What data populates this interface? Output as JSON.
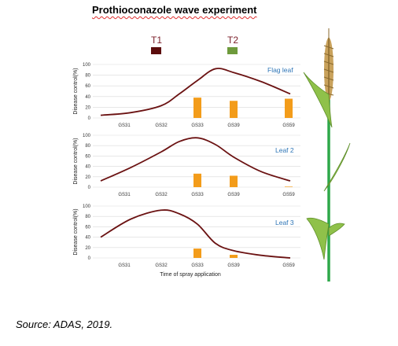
{
  "title": "Prothioconazole wave experiment",
  "source": "Source: ADAS, 2019.",
  "colors": {
    "curve": "#6b1212",
    "bars": "#f39c1a",
    "t1_swatch": "#5c0d0d",
    "t2_swatch": "#6e9a3c",
    "panel_label": "#2e75b6",
    "gridline": "#d9d9d9",
    "stem": "#2ea84a",
    "leaf": "#8fc14a",
    "ear": "#b98a3a"
  },
  "plant_icon": "wheat-plant-illustration",
  "chart_data": [
    {
      "type": "line+bar",
      "title": "Flag leaf",
      "ylabel": "Disease control(%)",
      "xlabel": "",
      "ylim": [
        0,
        100
      ],
      "yticks": [
        0,
        20,
        40,
        60,
        80,
        100
      ],
      "grid": true,
      "categories": [
        "GS31",
        "GS32",
        "GS33",
        "GS39",
        "GS59"
      ],
      "curve": {
        "x": [
          0,
          0.5,
          1,
          1.5,
          2,
          2.5,
          3,
          3.5,
          4
        ],
        "y": [
          5,
          10,
          23,
          45,
          70,
          92,
          85,
          68,
          45
        ]
      },
      "bars": [
        0,
        0,
        38,
        32,
        36
      ]
    },
    {
      "type": "line+bar",
      "title": "Leaf 2",
      "ylabel": "Disease control(%)",
      "xlabel": "",
      "ylim": [
        0,
        100
      ],
      "yticks": [
        0,
        20,
        40,
        60,
        80,
        100
      ],
      "grid": true,
      "categories": [
        "GS31",
        "GS32",
        "GS33",
        "GS39",
        "GS59"
      ],
      "curve": {
        "x": [
          0,
          0.5,
          1,
          1.5,
          2,
          2.5,
          3,
          3.5,
          4
        ],
        "y": [
          12,
          38,
          68,
          88,
          95,
          82,
          58,
          30,
          12
        ]
      },
      "bars": [
        0,
        0,
        26,
        22,
        1
      ]
    },
    {
      "type": "line+bar",
      "title": "Leaf 3",
      "ylabel": "Disease control(%)",
      "xlabel": "Time of spray application",
      "ylim": [
        0,
        100
      ],
      "yticks": [
        0,
        20,
        40,
        60,
        80,
        100
      ],
      "grid": true,
      "categories": [
        "GS31",
        "GS32",
        "GS33",
        "GS39",
        "GS59"
      ],
      "curve": {
        "x": [
          0,
          0.5,
          1,
          1.5,
          2,
          2.5,
          3,
          3.5,
          4
        ],
        "y": [
          40,
          75,
          92,
          85,
          65,
          28,
          14,
          5,
          0
        ]
      },
      "bars": [
        0,
        0,
        18,
        6,
        0
      ]
    }
  ],
  "legend": [
    {
      "label": "T1",
      "color": "#5c0d0d"
    },
    {
      "label": "T2",
      "color": "#6e9a3c"
    }
  ]
}
